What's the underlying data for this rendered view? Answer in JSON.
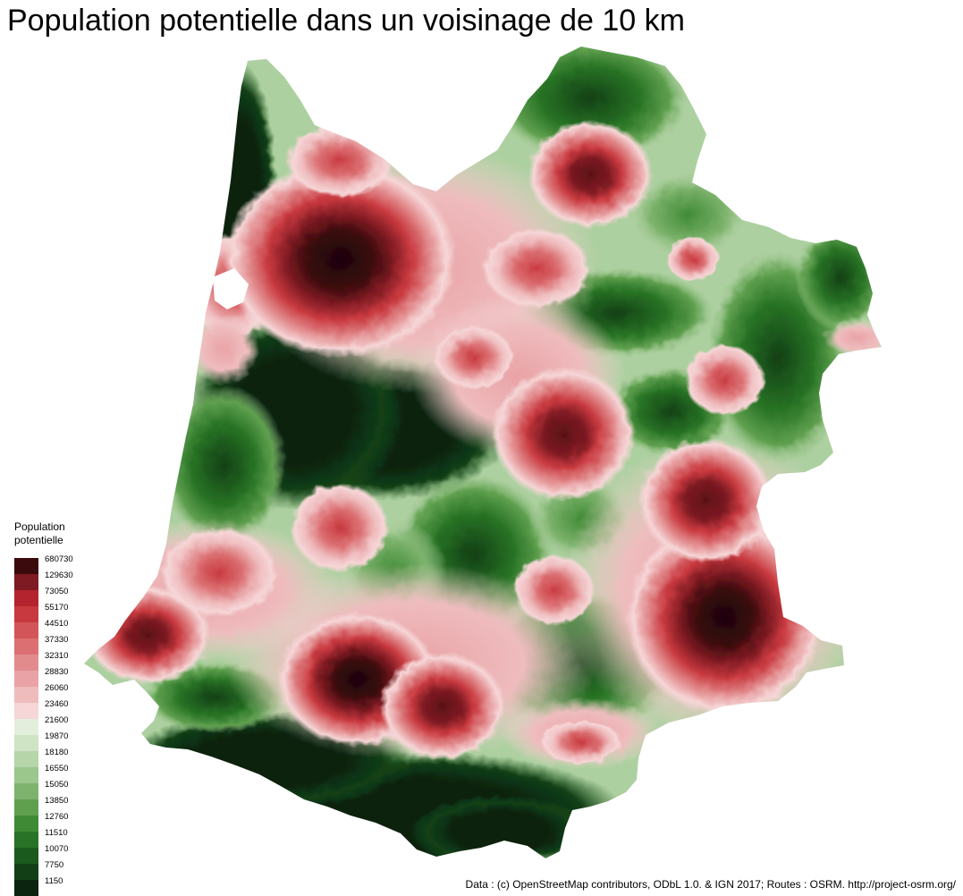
{
  "title": "Population potentielle dans un voisinage de 10 km",
  "legend": {
    "title_line1": "Population",
    "title_line2": "potentielle",
    "classes": [
      {
        "label": "680730",
        "color": "#3a0a0c"
      },
      {
        "label": "129630",
        "color": "#7d1a22"
      },
      {
        "label": "73050",
        "color": "#b3242e"
      },
      {
        "label": "55170",
        "color": "#c8393f"
      },
      {
        "label": "44510",
        "color": "#d25559"
      },
      {
        "label": "37330",
        "color": "#db6f72"
      },
      {
        "label": "32310",
        "color": "#e28b8d"
      },
      {
        "label": "28830",
        "color": "#e9a3a6"
      },
      {
        "label": "26060",
        "color": "#efbcbe"
      },
      {
        "label": "23460",
        "color": "#f6d6d7"
      },
      {
        "label": "21600",
        "color": "#e3efdc"
      },
      {
        "label": "19870",
        "color": "#cfe3c5"
      },
      {
        "label": "18180",
        "color": "#b6d5a9"
      },
      {
        "label": "16550",
        "color": "#9bc68c"
      },
      {
        "label": "15050",
        "color": "#7db36d"
      },
      {
        "label": "13850",
        "color": "#5fa04f"
      },
      {
        "label": "12760",
        "color": "#3f8a35"
      },
      {
        "label": "11510",
        "color": "#287325"
      },
      {
        "label": "10070",
        "color": "#1a5a1c"
      },
      {
        "label": "7750",
        "color": "#123f15"
      },
      {
        "label": "1150",
        "color": "#0a2410"
      }
    ]
  },
  "source": "Data : (c) OpenStreetMap contributors, ODbL 1.0. & IGN 2017; Routes : OSRM. http://project-osrm.org/"
}
